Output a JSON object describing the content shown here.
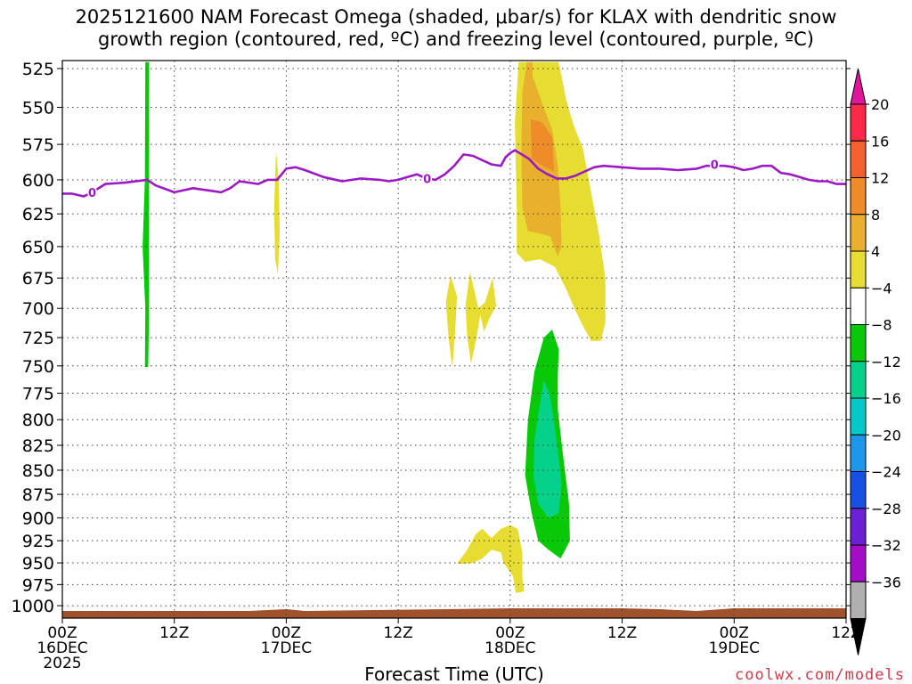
{
  "title_line1": "2025121600 NAM Forecast Omega (shaded, μbar/s) for KLAX with dendritic snow",
  "title_line2": "growth region (contoured, red, ºC) and freezing level (contoured, purple, ºC)",
  "watermark": "coolwx.com/models",
  "chart_data": {
    "type": "heatmap",
    "xlabel": "Forecast Time (UTC)",
    "x_hours_range": [
      0,
      84
    ],
    "ylim_hpa": [
      520,
      1015
    ],
    "y_ticks": [
      525,
      550,
      575,
      600,
      625,
      650,
      675,
      700,
      725,
      750,
      775,
      800,
      825,
      850,
      875,
      900,
      925,
      950,
      975,
      1000
    ],
    "x_ticks": [
      {
        "h": 0,
        "l1": "00Z",
        "l2": "16DEC",
        "l3": "2025"
      },
      {
        "h": 12,
        "l1": "12Z",
        "l2": "",
        "l3": ""
      },
      {
        "h": 24,
        "l1": "00Z",
        "l2": "17DEC",
        "l3": ""
      },
      {
        "h": 36,
        "l1": "12Z",
        "l2": "",
        "l3": ""
      },
      {
        "h": 48,
        "l1": "00Z",
        "l2": "18DEC",
        "l3": ""
      },
      {
        "h": 60,
        "l1": "12Z",
        "l2": "",
        "l3": ""
      },
      {
        "h": 72,
        "l1": "00Z",
        "l2": "19DEC",
        "l3": ""
      },
      {
        "h": 84,
        "l1": "12Z",
        "l2": "",
        "l3": ""
      }
    ],
    "colorbar": {
      "labels": [
        "20",
        "16",
        "12",
        "8",
        "4",
        "−4",
        "−8",
        "−12",
        "−16",
        "−20",
        "−24",
        "−28",
        "−32",
        "−36"
      ],
      "colors": [
        "#fc2a4a",
        "#f3612e",
        "#ee8c2a",
        "#e8b02c",
        "#e6dc32",
        "#ffffff",
        "#08c808",
        "#06d18a",
        "#05c9c7",
        "#1d97ea",
        "#1a4fe6",
        "#6a20d4",
        "#a40cc7",
        "#b0b0b0"
      ],
      "top_arrow": "#e0169a",
      "bottom_arrow": "#000000"
    },
    "freezing_level": {
      "color": "#9c1ac4",
      "label": "0",
      "points": [
        [
          0,
          610
        ],
        [
          1,
          610
        ],
        [
          2.3,
          612
        ],
        [
          3.2,
          609
        ],
        [
          4.6,
          603
        ],
        [
          6.7,
          602
        ],
        [
          9.1,
          600
        ],
        [
          10,
          604
        ],
        [
          12,
          609
        ],
        [
          14,
          606
        ],
        [
          16,
          608
        ],
        [
          17,
          609
        ],
        [
          18,
          606
        ],
        [
          19,
          601
        ],
        [
          21,
          603
        ],
        [
          22,
          600
        ],
        [
          23,
          600
        ],
        [
          23.5,
          596
        ],
        [
          24,
          592
        ],
        [
          25,
          591
        ],
        [
          26,
          593
        ],
        [
          28,
          598
        ],
        [
          30,
          601
        ],
        [
          32,
          599
        ],
        [
          34,
          600
        ],
        [
          35,
          601
        ],
        [
          36,
          600
        ],
        [
          37,
          598
        ],
        [
          38,
          596
        ],
        [
          39,
          599
        ],
        [
          40,
          600
        ],
        [
          41,
          596
        ],
        [
          42,
          590
        ],
        [
          43,
          582
        ],
        [
          44,
          583
        ],
        [
          45,
          586
        ],
        [
          46,
          589
        ],
        [
          47,
          590
        ],
        [
          47.5,
          584
        ],
        [
          48,
          581
        ],
        [
          48.5,
          579
        ],
        [
          49,
          581
        ],
        [
          50,
          585
        ],
        [
          51,
          592
        ],
        [
          52,
          596
        ],
        [
          53,
          599
        ],
        [
          54,
          599
        ],
        [
          55,
          597
        ],
        [
          56,
          594
        ],
        [
          57,
          591
        ],
        [
          58,
          590
        ],
        [
          60,
          591
        ],
        [
          62,
          592
        ],
        [
          64,
          592
        ],
        [
          66,
          593
        ],
        [
          68,
          592
        ],
        [
          69,
          590
        ],
        [
          71,
          590
        ],
        [
          72,
          591
        ],
        [
          73,
          593
        ],
        [
          74,
          592
        ],
        [
          75,
          590
        ],
        [
          76,
          590
        ],
        [
          77,
          595
        ],
        [
          78,
          596
        ],
        [
          79,
          598
        ],
        [
          80,
          600
        ],
        [
          81,
          601
        ],
        [
          82,
          601
        ],
        [
          83,
          603
        ],
        [
          84,
          603
        ]
      ],
      "labels_at": [
        [
          3.2,
          609
        ],
        [
          39.1,
          599
        ],
        [
          69.9,
          589
        ]
      ]
    },
    "shaded_regions": [
      {
        "name": "yellow-main",
        "color": "#e6dc32",
        "points": [
          [
            48.9,
            521
          ],
          [
            48.5,
            560
          ],
          [
            48.7,
            620
          ],
          [
            48.7,
            655
          ],
          [
            49.6,
            662
          ],
          [
            51.2,
            660
          ],
          [
            52.8,
            666
          ],
          [
            54,
            684
          ],
          [
            55,
            702
          ],
          [
            56,
            718
          ],
          [
            56.7,
            728
          ],
          [
            57.7,
            728
          ],
          [
            58.2,
            712
          ],
          [
            58.2,
            675
          ],
          [
            57.5,
            640
          ],
          [
            56.7,
            610
          ],
          [
            55.8,
            578
          ],
          [
            54.8,
            562
          ],
          [
            54,
            545
          ],
          [
            53.2,
            521
          ]
        ]
      },
      {
        "name": "orange-core",
        "color": "#e8b02c",
        "points": [
          [
            49.8,
            521
          ],
          [
            49.3,
            540
          ],
          [
            49.2,
            580
          ],
          [
            49.3,
            620
          ],
          [
            49.9,
            638
          ],
          [
            51.2,
            640
          ],
          [
            52.3,
            642
          ],
          [
            53.1,
            658
          ],
          [
            53.5,
            650
          ],
          [
            53.4,
            620
          ],
          [
            53.1,
            590
          ],
          [
            52.5,
            565
          ],
          [
            51.3,
            545
          ],
          [
            50.4,
            530
          ],
          [
            50.4,
            521
          ]
        ]
      },
      {
        "name": "deep-orange",
        "color": "#ee8c2a",
        "points": [
          [
            50.2,
            558
          ],
          [
            50.3,
            585
          ],
          [
            51.5,
            590
          ],
          [
            52.7,
            594
          ],
          [
            52.5,
            570
          ],
          [
            51.4,
            560
          ]
        ]
      },
      {
        "name": "yellow-blob1",
        "color": "#e6dc32",
        "points": [
          [
            41.6,
            673
          ],
          [
            41.1,
            695
          ],
          [
            41.4,
            725
          ],
          [
            41.8,
            752
          ],
          [
            42.1,
            720
          ],
          [
            42.3,
            690
          ]
        ]
      },
      {
        "name": "yellow-blob2",
        "color": "#e6dc32",
        "points": [
          [
            43.7,
            670
          ],
          [
            43.2,
            698
          ],
          [
            43.4,
            725
          ],
          [
            43.8,
            748
          ],
          [
            44.4,
            725
          ],
          [
            44.8,
            705
          ],
          [
            45.2,
            720
          ],
          [
            45.8,
            708
          ],
          [
            46.5,
            698
          ],
          [
            46.1,
            675
          ],
          [
            45.3,
            695
          ],
          [
            44.6,
            700
          ]
        ]
      },
      {
        "name": "yellow-lower",
        "color": "#e6dc32",
        "points": [
          [
            42.3,
            951
          ],
          [
            43.4,
            935
          ],
          [
            44.3,
            918
          ],
          [
            45,
            912
          ],
          [
            46,
            922
          ],
          [
            47,
            912
          ],
          [
            48,
            908
          ],
          [
            48.8,
            912
          ],
          [
            49.3,
            938
          ],
          [
            49.3,
            968
          ],
          [
            49.5,
            983
          ],
          [
            48.6,
            985
          ],
          [
            48.3,
            965
          ],
          [
            47.3,
            950
          ],
          [
            47,
            938
          ],
          [
            46,
            935
          ],
          [
            45,
            945
          ],
          [
            44,
            950
          ],
          [
            43,
            951
          ]
        ]
      },
      {
        "name": "green-outer",
        "color": "#08c808",
        "points": [
          [
            52.5,
            718
          ],
          [
            51.6,
            725
          ],
          [
            50.6,
            755
          ],
          [
            49.9,
            800
          ],
          [
            49.6,
            855
          ],
          [
            50.3,
            895
          ],
          [
            51,
            925
          ],
          [
            52.1,
            935
          ],
          [
            53.4,
            945
          ],
          [
            53.9,
            935
          ],
          [
            54.4,
            925
          ],
          [
            54.3,
            885
          ],
          [
            53.6,
            830
          ],
          [
            53.1,
            790
          ],
          [
            53.1,
            760
          ],
          [
            53.2,
            735
          ]
        ]
      },
      {
        "name": "teal-core",
        "color": "#06d18a",
        "points": [
          [
            51.6,
            763
          ],
          [
            51.1,
            790
          ],
          [
            50.6,
            820
          ],
          [
            50.5,
            855
          ],
          [
            51,
            885
          ],
          [
            52.1,
            900
          ],
          [
            53.2,
            895
          ],
          [
            53.5,
            865
          ],
          [
            53.1,
            830
          ],
          [
            52.6,
            795
          ],
          [
            52.2,
            775
          ]
        ]
      },
      {
        "name": "yellow-sliver",
        "color": "#e6dc32",
        "points": [
          [
            22.9,
            580
          ],
          [
            22.7,
            620
          ],
          [
            22.8,
            660
          ],
          [
            23.1,
            672
          ],
          [
            23.3,
            640
          ],
          [
            23.2,
            600
          ]
        ]
      },
      {
        "name": "green-line",
        "color": "#08c808",
        "points": [
          [
            8.9,
            521
          ],
          [
            8.85,
            600
          ],
          [
            8.6,
            650
          ],
          [
            8.9,
            700
          ],
          [
            8.85,
            751
          ],
          [
            9.2,
            751
          ],
          [
            9.3,
            700
          ],
          [
            9.3,
            650
          ],
          [
            9.3,
            600
          ],
          [
            9.3,
            521
          ]
        ]
      }
    ],
    "terrain_color": "#a0522d",
    "grid": true
  }
}
